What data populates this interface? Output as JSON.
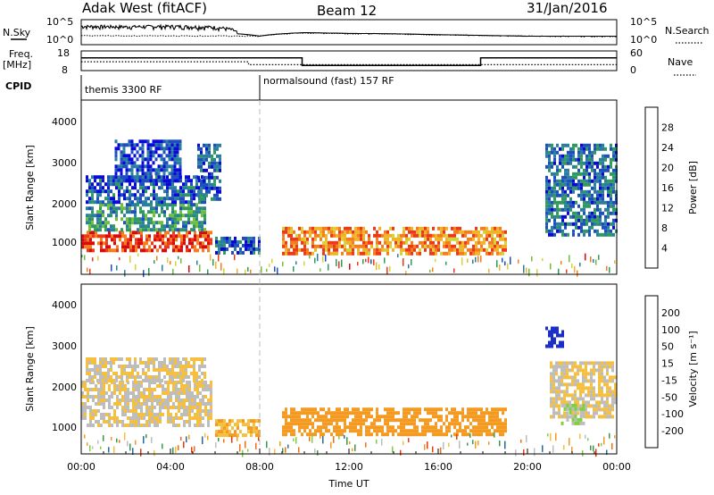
{
  "header": {
    "station": "Adak West (fitACF)",
    "beam": "Beam 12",
    "date": "31/Jan/2016"
  },
  "panel_labels": {
    "nsky": "N.Sky",
    "nsearch": "N.Search",
    "freq": "Freq.",
    "freq_unit": "[MHz]",
    "nave": "Nave",
    "cpid": "CPID"
  },
  "small_axes": {
    "noise_ticks": [
      "10^5",
      "10^0"
    ],
    "freq_ticks": [
      "18",
      "8"
    ],
    "nave_ticks": [
      "60",
      "0"
    ]
  },
  "cpid_labels": [
    "themis 3300 RF",
    "normalsound (fast) 157 RF"
  ],
  "x_axis": {
    "label": "Time UT",
    "ticks": [
      "00:00",
      "04:00",
      "08:00",
      "12:00",
      "16:00",
      "20:00",
      "00:00"
    ]
  },
  "y_axis": {
    "label": "Slant Range [km]",
    "ticks": [
      "4000",
      "3000",
      "2000",
      "1000"
    ]
  },
  "colorbars": {
    "power": {
      "label": "Power [dB]",
      "ticks": [
        "28",
        "24",
        "20",
        "16",
        "12",
        "8",
        "4"
      ],
      "colors": [
        "#0a0ad8",
        "#1e4fbf",
        "#2a7ea0",
        "#2e9b5a",
        "#6fbf3a",
        "#d4d43a",
        "#f0b428",
        "#f47d1e",
        "#ea3a18",
        "#d80a0a"
      ]
    },
    "velocity": {
      "label": "Velocity [m s⁻¹]",
      "ticks": [
        "200",
        "100",
        "50",
        "15",
        "-15",
        "-50",
        "-100",
        "-200"
      ],
      "colors": [
        "#1a2ec8",
        "#2a6a9a",
        "#3a9a48",
        "#7fd040",
        "#bdbdbd",
        "#f5c040",
        "#f59a20",
        "#f07010",
        "#e83a0a",
        "#e00a0a"
      ]
    }
  },
  "chart_data": [
    {
      "type": "line",
      "title": "N.Sky / N.Search",
      "ylabel": "N.Sky",
      "x_range_hours": [
        0,
        24
      ],
      "scale": "log",
      "ylim": [
        1,
        100000
      ],
      "series": [
        {
          "name": "N.Sky",
          "x": [
            0,
            2,
            4,
            6,
            7,
            8,
            10,
            12,
            14,
            16,
            18,
            20,
            22,
            24
          ],
          "values": [
            3000,
            2500,
            3000,
            2000,
            150,
            50,
            250,
            180,
            150,
            100,
            70,
            50,
            50,
            50
          ]
        },
        {
          "name": "N.Search",
          "x": [
            0,
            2,
            4,
            6,
            8,
            10,
            12,
            14,
            16,
            18,
            20,
            22,
            24
          ],
          "values": [
            60,
            60,
            60,
            55,
            50,
            220,
            160,
            140,
            90,
            70,
            50,
            45,
            45
          ]
        }
      ]
    },
    {
      "type": "line",
      "title": "Freq. / Nave",
      "ylabel": "Freq. [MHz]",
      "x_range_hours": [
        0,
        24
      ],
      "ylim": [
        8,
        18
      ],
      "y2lim": [
        0,
        60
      ],
      "series": [
        {
          "name": "Freq.",
          "x": [
            0,
            9.9,
            9.9,
            17.9,
            17.9,
            24
          ],
          "values": [
            14.5,
            14.5,
            10.6,
            10.6,
            14.5,
            14.5
          ]
        },
        {
          "name": "Nave",
          "x": [
            0,
            7.5,
            7.5,
            24
          ],
          "values": [
            27,
            27,
            18,
            18
          ]
        }
      ]
    },
    {
      "type": "heatmap",
      "title": "Power [dB]",
      "xlabel": "Time UT",
      "ylabel": "Slant Range [km]",
      "x_range_hours": [
        0,
        24
      ],
      "ylim": [
        200,
        4600
      ],
      "zlim": [
        0,
        30
      ],
      "regions": [
        {
          "t0": 0.0,
          "t1": 5.8,
          "r0": 800,
          "r1": 1300,
          "power": 26
        },
        {
          "t0": 0.2,
          "t1": 5.5,
          "r0": 1300,
          "r1": 2000,
          "power": 10
        },
        {
          "t0": 0.2,
          "t1": 5.5,
          "r0": 2000,
          "r1": 2700,
          "power": 5
        },
        {
          "t0": 1.5,
          "t1": 4.5,
          "r0": 2600,
          "r1": 3600,
          "power": 4
        },
        {
          "t0": 5.2,
          "t1": 6.2,
          "r0": 2100,
          "r1": 3500,
          "power": 6
        },
        {
          "t0": 6.0,
          "t1": 8.0,
          "r0": 700,
          "r1": 1150,
          "power": 6
        },
        {
          "t0": 9.0,
          "t1": 19.0,
          "r0": 700,
          "r1": 1400,
          "power": 22
        },
        {
          "t0": 20.8,
          "t1": 24.0,
          "r0": 1200,
          "r1": 3500,
          "power": 7
        }
      ]
    },
    {
      "type": "heatmap",
      "title": "Velocity [m s⁻¹]",
      "xlabel": "Time UT",
      "ylabel": "Slant Range [km]",
      "x_range_hours": [
        0,
        24
      ],
      "ylim": [
        200,
        4600
      ],
      "zlim": [
        -200,
        200
      ],
      "regions": [
        {
          "t0": 0.0,
          "t1": 5.8,
          "r0": 900,
          "r1": 2100,
          "velocity": 0
        },
        {
          "t0": 0.2,
          "t1": 5.5,
          "r0": 2100,
          "r1": 2700,
          "velocity": 0
        },
        {
          "t0": 6.0,
          "t1": 8.0,
          "r0": 700,
          "r1": 1100,
          "velocity": -40
        },
        {
          "t0": 9.0,
          "t1": 19.0,
          "r0": 700,
          "r1": 1400,
          "velocity": -60
        },
        {
          "t0": 20.8,
          "t1": 21.6,
          "r0": 3000,
          "r1": 3500,
          "velocity": 180
        },
        {
          "t0": 21.0,
          "t1": 24.0,
          "r0": 1200,
          "r1": 2600,
          "velocity": 0
        },
        {
          "t0": 21.5,
          "t1": 22.5,
          "r0": 1000,
          "r1": 1500,
          "velocity": 40
        }
      ]
    }
  ]
}
